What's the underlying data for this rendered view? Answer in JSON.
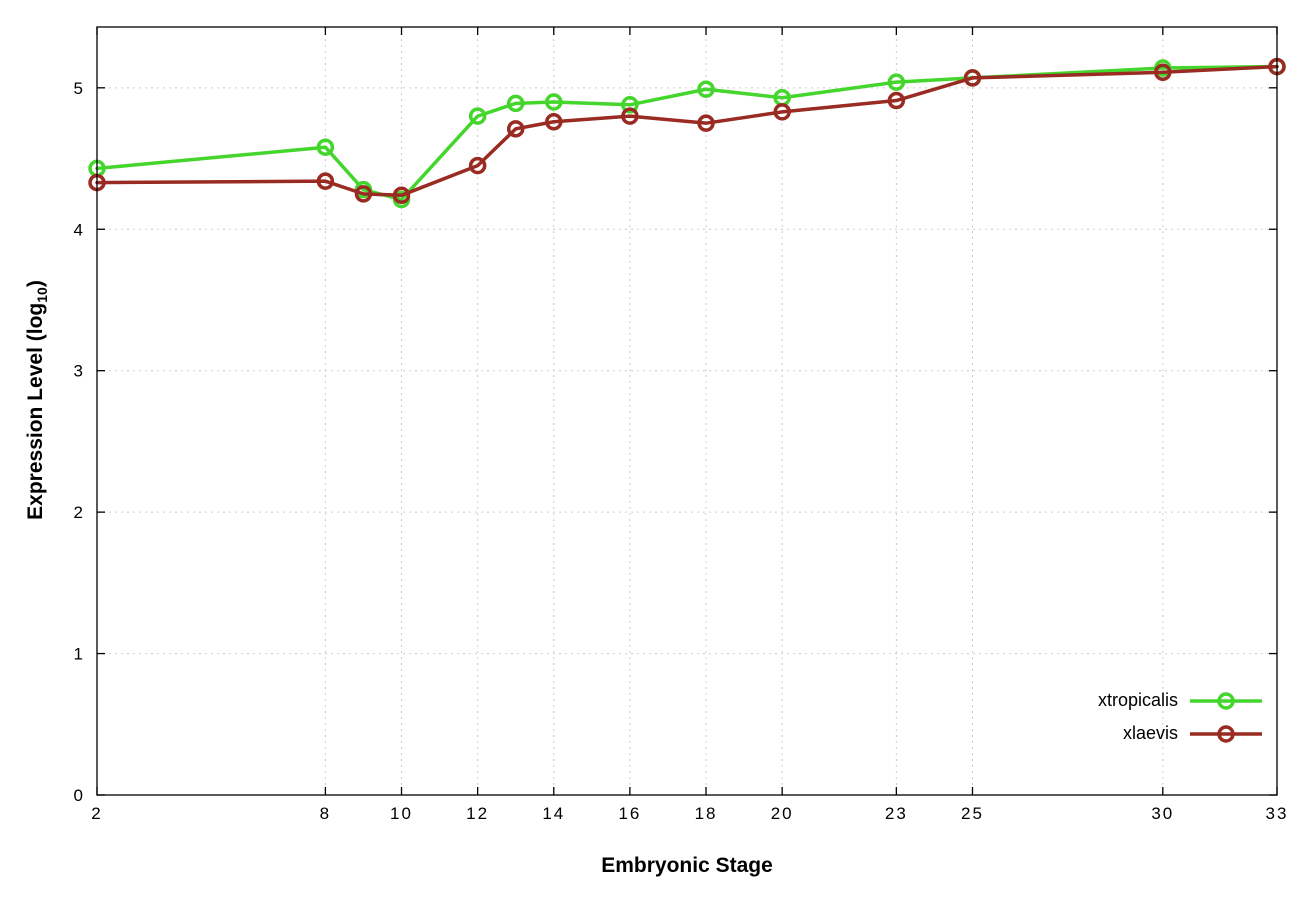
{
  "chart_data": {
    "type": "line",
    "x": [
      2,
      8,
      9,
      10,
      12,
      13,
      14,
      16,
      18,
      20,
      23,
      25,
      30,
      33
    ],
    "series": [
      {
        "name": "xtropicalis",
        "color": "#44d62c",
        "values": [
          4.43,
          4.58,
          4.28,
          4.21,
          4.8,
          4.89,
          4.9,
          4.88,
          4.99,
          4.93,
          5.04,
          5.07,
          5.14,
          5.15
        ]
      },
      {
        "name": "xlaevis",
        "color": "#992b22",
        "values": [
          4.33,
          4.34,
          4.25,
          4.24,
          4.45,
          4.71,
          4.76,
          4.8,
          4.75,
          4.83,
          4.91,
          5.07,
          5.11,
          5.15
        ]
      }
    ],
    "title": "",
    "xlabel": "Embryonic Stage",
    "ylabel": "Expression Level (log10)",
    "ylabel_parts": {
      "prefix": "Expression Level (log",
      "sub": "10",
      "suffix": ")"
    },
    "xticks": [
      2,
      8,
      10,
      12,
      14,
      16,
      18,
      20,
      23,
      25,
      30,
      33
    ],
    "yticks": [
      0,
      1,
      2,
      3,
      4,
      5
    ],
    "xlim": [
      2,
      33
    ],
    "ylim": [
      0,
      5.43
    ],
    "grid": true,
    "marker": "open-circle",
    "legend_position": "inside bottom-right"
  }
}
